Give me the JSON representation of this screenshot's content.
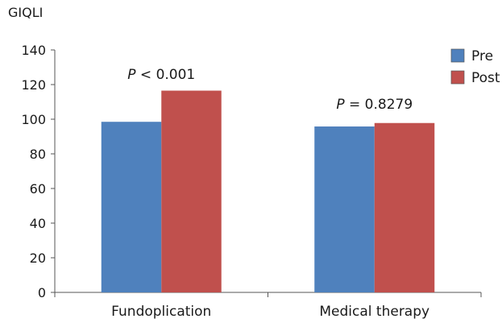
{
  "chart_data": {
    "type": "bar",
    "ylabel": "GIQLI",
    "ylim": [
      0,
      140
    ],
    "yticks": [
      0,
      20,
      40,
      60,
      80,
      100,
      120,
      140
    ],
    "categories": [
      "Fundoplication",
      "Medical therapy"
    ],
    "series": [
      {
        "name": "Pre",
        "values": [
          98.5,
          95.8
        ],
        "color": "#4f81bd"
      },
      {
        "name": "Post",
        "values": [
          116.5,
          97.8
        ],
        "color": "#c0504d"
      }
    ],
    "annotations": [
      {
        "category": "Fundoplication",
        "p_symbol": "P",
        "rest": " < 0.001"
      },
      {
        "category": "Medical therapy",
        "p_symbol": "P",
        "rest": " = 0.8279"
      }
    ],
    "legend_position": "top-right",
    "grid": false
  }
}
